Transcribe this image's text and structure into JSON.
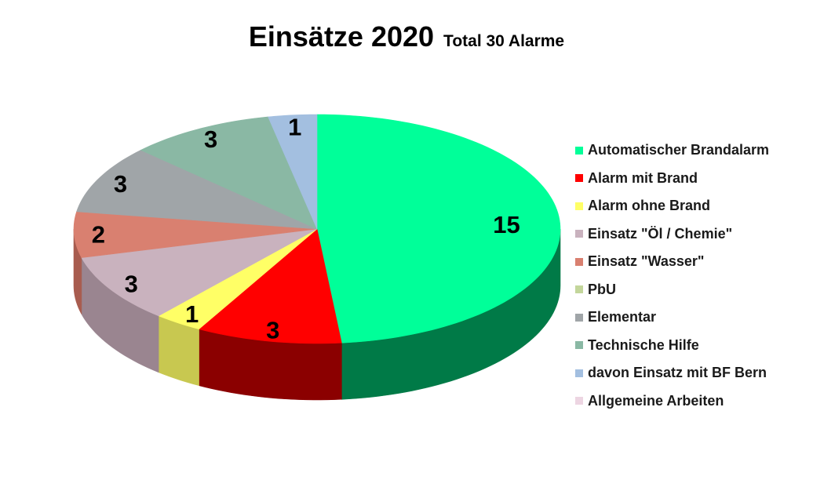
{
  "title": "Einsätze 2020",
  "subtitle": "Total  30 Alarme",
  "chart_data": {
    "type": "pie",
    "title": "Einsätze 2020",
    "subtitle": "Total  30 Alarme",
    "total": 30,
    "legend_position": "right",
    "slices": [
      {
        "name": "Automatischer Brandalarm",
        "value": 15,
        "color": "#00FF99",
        "side_color": "#007A47"
      },
      {
        "name": "Alarm mit Brand",
        "value": 3,
        "color": "#FF0000",
        "side_color": "#8B0000"
      },
      {
        "name": "Alarm ohne Brand",
        "value": 1,
        "color": "#FFFF66",
        "side_color": "#C8C850"
      },
      {
        "name": "Einsatz \"Öl / Chemie\"",
        "value": 3,
        "color": "#C9B2BE",
        "side_color": "#9A8590"
      },
      {
        "name": "Einsatz \"Wasser\"",
        "value": 2,
        "color": "#D98070",
        "side_color": "#A85C4F"
      },
      {
        "name": "PbU",
        "value": 0,
        "color": "#C3D69B",
        "side_color": "#93A570"
      },
      {
        "name": "Elementar",
        "value": 3,
        "color": "#A0A5A8",
        "side_color": "#73787B"
      },
      {
        "name": "Technische Hilfe",
        "value": 3,
        "color": "#8AB8A4",
        "side_color": "#5F8A77"
      },
      {
        "name": "davon Einsatz mit BF Bern",
        "value": 1,
        "color": "#A3BFE0",
        "side_color": "#7590B0"
      },
      {
        "name": "Allgemeine Arbeiten",
        "value": 0,
        "color": "#EDD5E2",
        "side_color": "#BFA8B4"
      }
    ]
  }
}
